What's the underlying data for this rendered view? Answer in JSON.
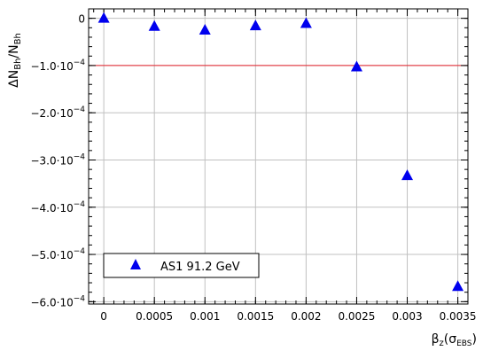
{
  "chart_data": {
    "type": "scatter",
    "xlabel": {
      "main": "β",
      "sub1": "z",
      "paren_open": "(σ",
      "sub2": "EBS",
      "paren_close": ")"
    },
    "ylabel": {
      "delta": "ΔN",
      "sub1": "Bh",
      "slash": "/N",
      "sub2": "Bh"
    },
    "xlim": [
      -0.00015,
      0.0036
    ],
    "ylim": [
      -0.000605,
      2e-05
    ],
    "x_ticks": [
      0,
      0.0005,
      0.001,
      0.0015,
      0.002,
      0.0025,
      0.003,
      0.0035
    ],
    "x_tick_labels": [
      "0",
      "0.0005",
      "0.001",
      "0.0015",
      "0.002",
      "0.0025",
      "0.003",
      "0.0035"
    ],
    "y_ticks": [
      {
        "value": 0,
        "mant": "0",
        "exp": ""
      },
      {
        "value": -0.0001,
        "mant": "−1.0·10",
        "exp": "−4"
      },
      {
        "value": -0.0002,
        "mant": "−2.0·10",
        "exp": "−4"
      },
      {
        "value": -0.0003,
        "mant": "−3.0·10",
        "exp": "−4"
      },
      {
        "value": -0.0004,
        "mant": "−4.0·10",
        "exp": "−4"
      },
      {
        "value": -0.0005,
        "mant": "−5.0·10",
        "exp": "−4"
      },
      {
        "value": -0.0006,
        "mant": "−6.0·10",
        "exp": "−4"
      }
    ],
    "grid": true,
    "reference_line": {
      "y": -0.0001,
      "color": "#e8202a"
    },
    "legend_position": "bottom-left",
    "series": [
      {
        "name": "AS1 91.2 GeV",
        "marker": "triangle",
        "color": "#0000ee",
        "x": [
          0,
          0.0005,
          0.001,
          0.0015,
          0.002,
          0.0025,
          0.003,
          0.0035
        ],
        "y": [
          0.0,
          -1.7e-05,
          -2.5e-05,
          -1.6e-05,
          -1.1e-05,
          -0.000103,
          -0.000333,
          -0.000568
        ]
      }
    ]
  }
}
